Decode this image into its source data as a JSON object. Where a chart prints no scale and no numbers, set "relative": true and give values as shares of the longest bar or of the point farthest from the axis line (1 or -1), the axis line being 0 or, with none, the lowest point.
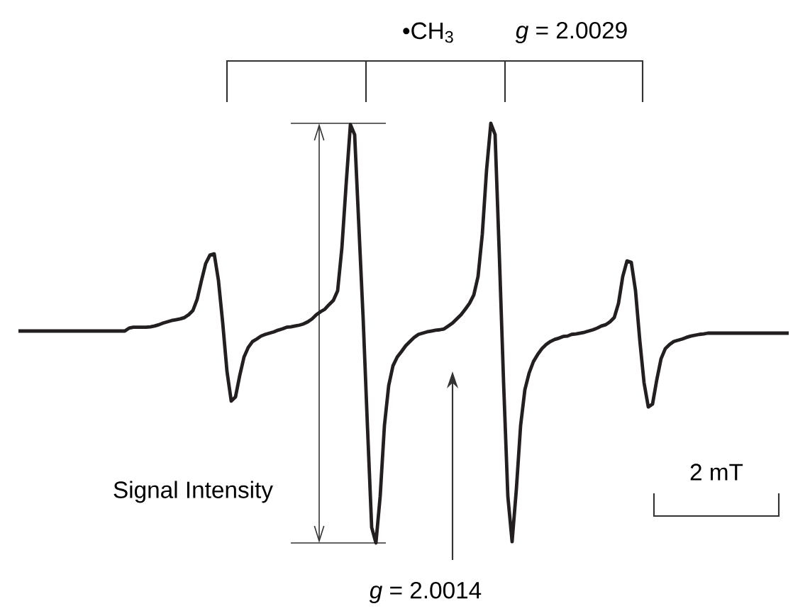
{
  "chart_data": {
    "type": "line",
    "relative": true,
    "annotations": [
      "•CH$_{3}$",
      "*g* = 2.0029",
      "Signal Intensity",
      "2 mT",
      "*g* = 2.0014"
    ],
    "categories": [
      null,
      null,
      null,
      null,
      null,
      null,
      null,
      null,
      null,
      null,
      null,
      null,
      null,
      null,
      null,
      null,
      null,
      null,
      null,
      null,
      null,
      null,
      null,
      null,
      null,
      null,
      null,
      null,
      null,
      null,
      null,
      null,
      null,
      null,
      null,
      null,
      null,
      null,
      null,
      null,
      null,
      null,
      null,
      null,
      null,
      null,
      null,
      null,
      null,
      null,
      null,
      null,
      null,
      null,
      null,
      null,
      null,
      null,
      null,
      null,
      null,
      null,
      null,
      null,
      null,
      null,
      null,
      null,
      null,
      null,
      null,
      null,
      null,
      null,
      null,
      null,
      null,
      null,
      null,
      null,
      null,
      null,
      null,
      null,
      null,
      null,
      null,
      null,
      null,
      null,
      null,
      null,
      null,
      null,
      null,
      null,
      null,
      null,
      null,
      null,
      null,
      null,
      null,
      null,
      null,
      null,
      null,
      null,
      null,
      null,
      null,
      null,
      null,
      null,
      null,
      null,
      null,
      null,
      null,
      null,
      null,
      null,
      null,
      null,
      null,
      null,
      null,
      null,
      null,
      null,
      null,
      null,
      null,
      null,
      null,
      null,
      null,
      null,
      null,
      null,
      null,
      null,
      null,
      null,
      null,
      null,
      null,
      null,
      null,
      null,
      null,
      null,
      null,
      null,
      null,
      null,
      null,
      null,
      null,
      null,
      null,
      null,
      null,
      null,
      null,
      null,
      null,
      null,
      null,
      null,
      null,
      null,
      null,
      null,
      null,
      null,
      null,
      null,
      null,
      null,
      null,
      null
    ],
    "series": [
      {
        "color": "#231f20",
        "values": [
          0.505,
          0.505,
          0.505,
          0.505,
          0.505,
          0.505,
          0.505,
          0.505,
          0.505,
          0.505,
          0.505,
          0.505,
          0.505,
          0.505,
          0.505,
          0.505,
          0.505,
          0.505,
          0.505,
          0.505,
          0.505,
          0.505,
          0.505,
          0.505,
          0.505,
          0.505,
          0.512,
          0.514,
          0.514,
          0.514,
          0.514,
          0.515,
          0.517,
          0.52,
          0.524,
          0.527,
          0.53,
          0.532,
          0.534,
          0.537,
          0.544,
          0.554,
          0.581,
          0.625,
          0.666,
          0.686,
          0.689,
          0.625,
          0.524,
          0.409,
          0.338,
          0.348,
          0.399,
          0.443,
          0.466,
          0.48,
          0.486,
          0.493,
          0.497,
          0.5,
          0.503,
          0.507,
          0.51,
          0.514,
          0.515,
          0.517,
          0.519,
          0.522,
          0.527,
          0.534,
          0.544,
          0.551,
          0.557,
          0.568,
          0.578,
          0.601,
          0.703,
          0.855,
          0.997,
          0.973,
          0.753,
          0.534,
          0.28,
          0.037,
          0,
          0.111,
          0.28,
          0.375,
          0.422,
          0.443,
          0.456,
          0.47,
          0.48,
          0.49,
          0.497,
          0.5,
          0.503,
          0.505,
          0.507,
          0.508,
          0.51,
          0.517,
          0.524,
          0.534,
          0.544,
          0.557,
          0.571,
          0.591,
          0.635,
          0.736,
          0.889,
          1,
          0.973,
          0.686,
          0.382,
          0.111,
          0.003,
          0.128,
          0.28,
          0.365,
          0.405,
          0.432,
          0.449,
          0.463,
          0.473,
          0.48,
          0.485,
          0.488,
          0.492,
          0.493,
          0.497,
          0.498,
          0.5,
          0.502,
          0.505,
          0.508,
          0.512,
          0.517,
          0.52,
          0.527,
          0.537,
          0.571,
          0.635,
          0.672,
          0.669,
          0.601,
          0.483,
          0.382,
          0.324,
          0.331,
          0.389,
          0.439,
          0.463,
          0.473,
          0.48,
          0.483,
          0.486,
          0.49,
          0.493,
          0.495,
          0.497,
          0.498,
          0.5,
          0.5,
          0.5,
          0.5,
          0.5,
          0.5,
          0.5,
          0.5,
          0.5,
          0.5,
          0.5,
          0.5,
          0.5,
          0.5,
          0.5,
          0.5,
          0.5,
          0.5,
          0.5,
          0.5
        ]
      }
    ]
  }
}
